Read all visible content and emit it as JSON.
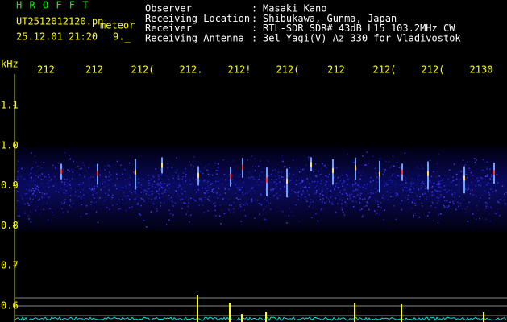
{
  "header": {
    "app": "H R O F F T",
    "file": "UT2512012120.pn",
    "tag": "meteor",
    "datetime": "25.12.01 21:20",
    "value": "9._"
  },
  "info": {
    "separator": ":",
    "rows": [
      {
        "label": "Observer",
        "value": "Masaki Kano"
      },
      {
        "label": "Receiving Location",
        "value": "Shibukawa, Gunma, Japan"
      },
      {
        "label": "Receiver",
        "value": "RTL-SDR SDR# 43dB L15 103.2MHz CW"
      },
      {
        "label": "Receiving Antenna",
        "value": "3el Yagi(V) Az 330 for Vladivostok"
      }
    ]
  },
  "axis": {
    "unit": "kHz",
    "time_labels": [
      "212",
      "212",
      "212(",
      "212.",
      "212!",
      "212(",
      "212",
      "212(",
      "212(",
      "2130"
    ],
    "freq_labels": [
      "1.1",
      "1.0",
      "0.9",
      "0.8",
      "0.7",
      "0.6"
    ]
  }
}
